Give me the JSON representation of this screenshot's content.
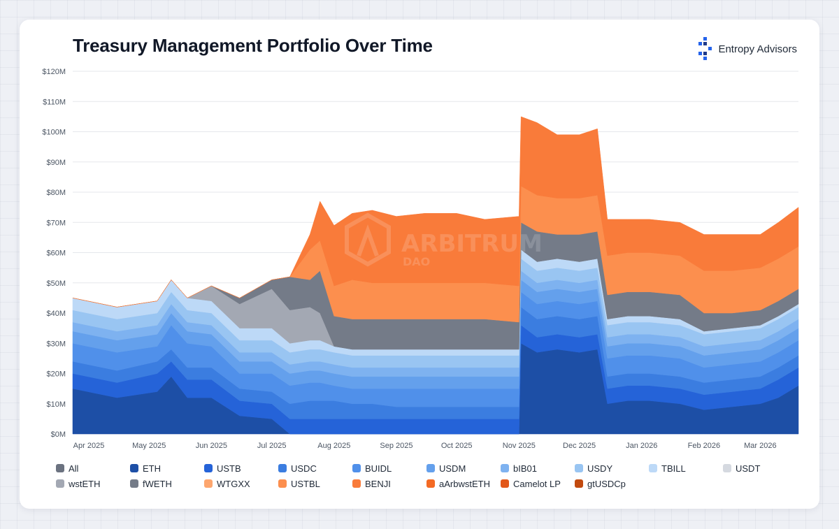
{
  "chart_data": {
    "type": "area",
    "stacked": true,
    "title": "Treasury Management Portfolio Over Time",
    "brand": "Entropy Advisors",
    "watermark": {
      "name": "ARBITRUM",
      "sub": "DAO"
    },
    "yaxis": {
      "ticks": [
        "$0M",
        "$10M",
        "$20M",
        "$30M",
        "$40M",
        "$50M",
        "$60M",
        "$70M",
        "$80M",
        "$90M",
        "$100M",
        "$110M",
        "$120M"
      ],
      "ylim": [
        0,
        120
      ],
      "unit": "$M"
    },
    "xaxis": {
      "ticks": [
        "Apr 2025",
        "May 2025",
        "Jun 2025",
        "Jul 2025",
        "Aug 2025",
        "Sep 2025",
        "Oct 2025",
        "Nov 2025",
        "Dec 2025",
        "Jan 2026",
        "Feb 2026",
        "Mar 2026"
      ]
    },
    "grid": true,
    "legend_position": "bottom",
    "x": [
      "2025-03-24",
      "2025-04-15",
      "2025-05-05",
      "2025-05-12",
      "2025-05-20",
      "2025-06-01",
      "2025-06-15",
      "2025-07-01",
      "2025-07-10",
      "2025-07-20",
      "2025-07-25",
      "2025-08-01",
      "2025-08-10",
      "2025-08-20",
      "2025-09-01",
      "2025-09-15",
      "2025-10-01",
      "2025-10-15",
      "2025-11-01",
      "2025-11-02",
      "2025-11-10",
      "2025-11-20",
      "2025-12-01",
      "2025-12-10",
      "2025-12-15",
      "2025-12-25",
      "2026-01-05",
      "2026-01-20",
      "2026-02-01",
      "2026-02-15",
      "2026-03-01",
      "2026-03-10",
      "2026-03-20"
    ],
    "series": [
      {
        "name": "All",
        "color": "#6b7280",
        "values": [
          0,
          0,
          0,
          0,
          0,
          0,
          0,
          0,
          0,
          0,
          0,
          0,
          0,
          0,
          0,
          0,
          0,
          0,
          0,
          0,
          0,
          0,
          0,
          0,
          0,
          0,
          0,
          0,
          0,
          0,
          0,
          0,
          0
        ]
      },
      {
        "name": "ETH",
        "color": "#1d4fa6",
        "values": [
          15,
          12,
          14,
          19,
          12,
          12,
          6,
          5,
          0,
          0,
          0,
          0,
          0,
          0,
          0,
          0,
          0,
          0,
          0,
          30,
          27,
          28,
          27,
          28,
          10,
          11,
          11,
          10,
          8,
          9,
          10,
          12,
          16
        ]
      },
      {
        "name": "USTB",
        "color": "#2563d8",
        "values": [
          5,
          5,
          6,
          5,
          6,
          6,
          5,
          5,
          5,
          5,
          5,
          5,
          5,
          5,
          5,
          5,
          5,
          5,
          5,
          6,
          5,
          5,
          5,
          5,
          5,
          5,
          5,
          5,
          5,
          5,
          5,
          6,
          6
        ]
      },
      {
        "name": "USDC",
        "color": "#3b7de0",
        "values": [
          4,
          4,
          4,
          4,
          4,
          4,
          4,
          4,
          5,
          6,
          6,
          6,
          5,
          5,
          4,
          4,
          4,
          4,
          4,
          6,
          6,
          6,
          6,
          6,
          4,
          4,
          4,
          4,
          4,
          4,
          4,
          4,
          4
        ]
      },
      {
        "name": "BUIDL",
        "color": "#5090ea",
        "values": [
          6,
          6,
          5,
          8,
          8,
          7,
          5,
          6,
          6,
          6,
          6,
          5,
          5,
          5,
          6,
          6,
          6,
          6,
          6,
          5,
          5,
          5,
          5,
          5,
          6,
          6,
          6,
          6,
          5,
          5,
          5,
          5,
          5
        ]
      },
      {
        "name": "USDM",
        "color": "#64a0ec",
        "values": [
          4,
          4,
          4,
          4,
          4,
          4,
          4,
          4,
          4,
          4,
          4,
          4,
          4,
          4,
          4,
          4,
          4,
          4,
          4,
          4,
          4,
          4,
          4,
          4,
          4,
          4,
          4,
          4,
          4,
          4,
          4,
          4,
          4
        ]
      },
      {
        "name": "bIB01",
        "color": "#7eb2f0",
        "values": [
          3,
          3,
          3,
          3,
          3,
          3,
          3,
          3,
          3,
          3,
          3,
          3,
          3,
          3,
          3,
          3,
          3,
          3,
          3,
          3,
          3,
          3,
          3,
          3,
          3,
          3,
          3,
          3,
          3,
          3,
          3,
          3,
          3
        ]
      },
      {
        "name": "USDY",
        "color": "#99c5f2",
        "values": [
          4,
          4,
          4,
          4,
          4,
          4,
          4,
          4,
          4,
          4,
          4,
          4,
          4,
          4,
          4,
          4,
          4,
          4,
          4,
          4,
          4,
          4,
          4,
          4,
          4,
          4,
          4,
          4,
          4,
          4,
          4,
          4,
          4
        ]
      },
      {
        "name": "TBILL",
        "color": "#bdd9f7",
        "values": [
          4,
          4,
          4,
          4,
          4,
          4,
          4,
          4,
          3,
          3,
          3,
          2,
          2,
          2,
          2,
          2,
          2,
          2,
          2,
          3,
          3,
          3,
          3,
          3,
          2,
          2,
          2,
          2,
          1,
          1,
          1,
          1,
          1
        ]
      },
      {
        "name": "USDT",
        "color": "#d5d9e0",
        "values": [
          0,
          0,
          0,
          0,
          0,
          0,
          0,
          0,
          0,
          0,
          0,
          0,
          0,
          0,
          0,
          0,
          0,
          0,
          0,
          0,
          0,
          0,
          0,
          0,
          0,
          0,
          0,
          0,
          0,
          0,
          0,
          0,
          0
        ]
      },
      {
        "name": "wstETH",
        "color": "#a3a8b3",
        "values": [
          0,
          0,
          0,
          0,
          0,
          5,
          8,
          13,
          11,
          11,
          9,
          0,
          0,
          0,
          0,
          0,
          0,
          0,
          0,
          0,
          0,
          0,
          0,
          0,
          0,
          0,
          0,
          0,
          0,
          0,
          0,
          0,
          0
        ]
      },
      {
        "name": "fWETH",
        "color": "#747b88",
        "values": [
          0,
          0,
          0,
          0,
          0,
          0,
          2,
          3,
          11,
          9,
          14,
          10,
          10,
          10,
          10,
          10,
          10,
          10,
          9,
          9,
          10,
          8,
          9,
          9,
          8,
          8,
          8,
          8,
          6,
          5,
          5,
          5,
          5
        ]
      },
      {
        "name": "WTGXX",
        "color": "#fda66e",
        "values": [
          0,
          0,
          0,
          0,
          0,
          0,
          0,
          0,
          0,
          0,
          0,
          0,
          0,
          0,
          0,
          0,
          0,
          0,
          0,
          0,
          0,
          0,
          0,
          0,
          0,
          0,
          0,
          0,
          0,
          0,
          0,
          0,
          0
        ]
      },
      {
        "name": "USTBL",
        "color": "#fc8f4e",
        "values": [
          0,
          0,
          0,
          0,
          0,
          0,
          0,
          0,
          0,
          10,
          10,
          10,
          13,
          12,
          12,
          12,
          12,
          12,
          12,
          12,
          12,
          12,
          12,
          12,
          13,
          13,
          13,
          13,
          14,
          14,
          14,
          14,
          14
        ]
      },
      {
        "name": "BENJI",
        "color": "#f97b3a",
        "values": [
          0,
          0,
          0,
          0,
          0,
          0,
          0,
          0,
          0,
          5,
          13,
          20,
          22,
          24,
          22,
          23,
          23,
          21,
          23,
          23,
          24,
          21,
          21,
          22,
          12,
          11,
          11,
          11,
          12,
          12,
          11,
          12,
          13
        ]
      },
      {
        "name": "aArbwstETH",
        "color": "#f46a24",
        "values": [
          0,
          0,
          0,
          0,
          0,
          0,
          0,
          0,
          0,
          0,
          0,
          0,
          0,
          0,
          0,
          0,
          0,
          0,
          0,
          0,
          0,
          0,
          0,
          0,
          0,
          0,
          0,
          0,
          0,
          0,
          0,
          0,
          0
        ]
      },
      {
        "name": "Camelot LP",
        "color": "#e2581a",
        "values": [
          0,
          0,
          0,
          0,
          0,
          0,
          0,
          0,
          0,
          0,
          0,
          0,
          0,
          0,
          0,
          0,
          0,
          0,
          0,
          0,
          0,
          0,
          0,
          0,
          0,
          0,
          0,
          0,
          0,
          0,
          0,
          0,
          0
        ]
      },
      {
        "name": "gtUSDCp",
        "color": "#c24a0f",
        "values": [
          0,
          0,
          0,
          0,
          0,
          0,
          0,
          0,
          0,
          0,
          0,
          0,
          0,
          0,
          0,
          0,
          0,
          0,
          0,
          0,
          0,
          0,
          0,
          0,
          0,
          0,
          0,
          0,
          0,
          0,
          0,
          0,
          0
        ]
      }
    ]
  }
}
